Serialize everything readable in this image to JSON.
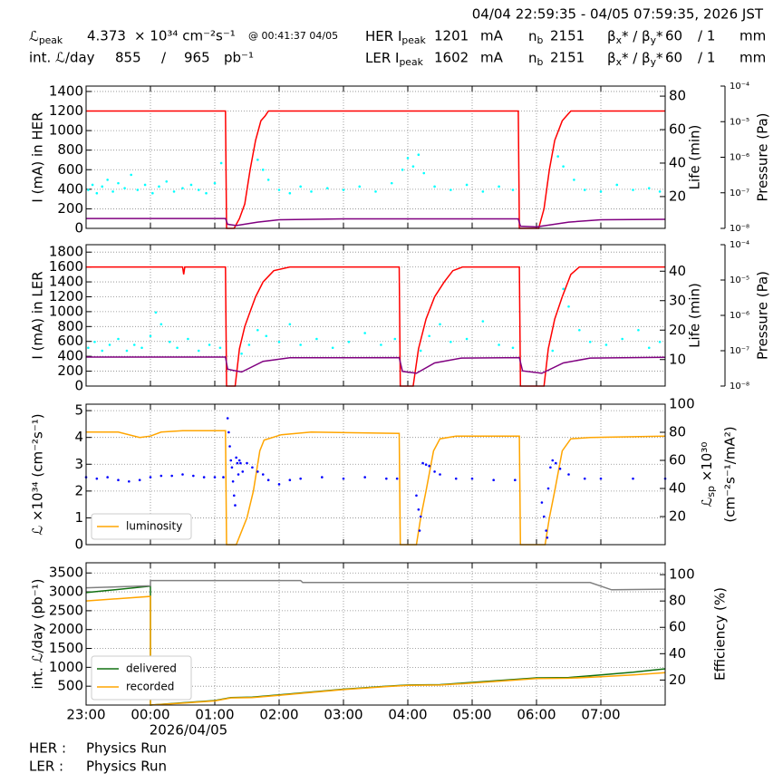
{
  "header": {
    "period": "04/04 22:59:35 - 04/05 07:59:35, 2026 JST",
    "rows": [
      [
        [
          "ℒ",
          "peak"
        ],
        4.373,
        "× 10³⁴ cm⁻²s⁻¹",
        "@ 00:41:37 04/05",
        [
          "HER I",
          "peak"
        ],
        1201,
        "mA",
        [
          "n",
          "b"
        ],
        2151,
        [
          "β",
          "x",
          "* / β",
          "y",
          "*"
        ],
        60,
        "/ 1",
        "mm"
      ],
      [
        "int. ℒ/day",
        855,
        "/",
        965,
        "pb⁻¹",
        [
          "LER I",
          "peak"
        ],
        1602,
        "mA",
        [
          "n",
          "b"
        ],
        2151,
        [
          "β",
          "x",
          "* / β",
          "y",
          "*"
        ],
        60,
        "/ 1",
        "mm"
      ]
    ]
  },
  "chart_data": [
    {
      "type": "line",
      "ylabel": "I (mA) in HER",
      "y2label": [
        "Life (min)"
      ],
      "y3label": "Pressure (Pa)",
      "xlim": [
        "23:00",
        "08:00"
      ],
      "xticks": [
        "23:00",
        "00:00",
        "01:00",
        "02:00",
        "03:00",
        "04:00",
        "05:00",
        "06:00",
        "07:00"
      ],
      "ylim": [
        0,
        1455
      ],
      "yticks": [
        0,
        200,
        400,
        600,
        800,
        1000,
        1200,
        1400
      ],
      "y2lim": [
        1,
        86
      ],
      "y2ticks": [
        20,
        40,
        60,
        80
      ],
      "y3lim": [
        1e-08,
        0.0001
      ],
      "y3log": true,
      "y3ticks": [
        {
          "value": 1e-08,
          "label": "10⁻⁸"
        },
        {
          "value": 1e-07,
          "label": "10⁻⁷"
        },
        {
          "value": 1e-06,
          "label": "10⁻⁶"
        },
        {
          "value": 1e-05,
          "label": "10⁻⁵"
        },
        {
          "value": 0.0001,
          "label": "10⁻⁴"
        }
      ],
      "grid": true,
      "series": [
        {
          "color": "#ff0000",
          "axis": "y",
          "style": "line",
          "x": [
            "23:00",
            "01:10",
            "01:11",
            "01:18",
            "01:23",
            "01:28",
            "01:33",
            "01:38",
            "01:43",
            "01:47",
            "01:50",
            "05:43",
            "05:44",
            "06:02",
            "06:07",
            "06:12",
            "06:17",
            "06:24",
            "06:28",
            "06:32",
            "08:00"
          ],
          "values": [
            1200,
            1200,
            0,
            0,
            100,
            250,
            600,
            900,
            1100,
            1150,
            1200,
            1200,
            0,
            0,
            200,
            600,
            900,
            1100,
            1150,
            1200,
            1200
          ]
        },
        {
          "color": "#800080",
          "axis": "y3",
          "style": "line",
          "x": [
            "23:00",
            "01:10",
            "01:12",
            "01:20",
            "01:40",
            "02:00",
            "03:00",
            "05:43",
            "05:45",
            "06:00",
            "06:30",
            "07:00",
            "08:00"
          ],
          "values": [
            1.9e-08,
            1.9e-08,
            1.3e-08,
            1.2e-08,
            1.5e-08,
            1.75e-08,
            1.85e-08,
            1.85e-08,
            1.15e-08,
            1.1e-08,
            1.5e-08,
            1.75e-08,
            1.8e-08
          ]
        },
        {
          "color": "#00ffff",
          "axis": "y2",
          "style": "dots",
          "x": [
            "23:02",
            "23:06",
            "23:10",
            "23:15",
            "23:20",
            "23:25",
            "23:30",
            "23:36",
            "23:42",
            "23:48",
            "23:55",
            "00:02",
            "00:08",
            "00:15",
            "00:22",
            "00:30",
            "00:38",
            "00:45",
            "00:52",
            "01:00",
            "01:06",
            "01:40",
            "01:45",
            "01:50",
            "02:00",
            "02:10",
            "02:20",
            "02:30",
            "02:45",
            "03:00",
            "03:15",
            "03:30",
            "03:45",
            "03:55",
            "04:00",
            "04:05",
            "04:10",
            "04:15",
            "04:25",
            "04:40",
            "04:55",
            "05:10",
            "05:25",
            "05:38",
            "06:20",
            "06:25",
            "06:35",
            "06:45",
            "07:00",
            "07:15",
            "07:30",
            "07:45",
            "07:55"
          ],
          "values": [
            24,
            27,
            22,
            26,
            30,
            23,
            28,
            25,
            33,
            24,
            27,
            22,
            26,
            29,
            23,
            25,
            27,
            24,
            22,
            28,
            40,
            42,
            36,
            30,
            24,
            22,
            26,
            23,
            25,
            24,
            26,
            23,
            28,
            36,
            43,
            38,
            45,
            34,
            26,
            24,
            27,
            23,
            26,
            24,
            44,
            38,
            30,
            24,
            23,
            27,
            24,
            25,
            23
          ]
        }
      ]
    },
    {
      "type": "line",
      "ylabel": "I (mA) in LER",
      "y2label": [
        "Life (min)"
      ],
      "y3label": "Pressure (Pa)",
      "xlim": [
        "23:00",
        "08:00"
      ],
      "xticks": [
        "23:00",
        "00:00",
        "01:00",
        "02:00",
        "03:00",
        "04:00",
        "05:00",
        "06:00",
        "07:00"
      ],
      "ylim": [
        0,
        1900
      ],
      "yticks": [
        0,
        200,
        400,
        600,
        800,
        1000,
        1200,
        1400,
        1600,
        1800
      ],
      "y2lim": [
        1,
        49
      ],
      "y2ticks": [
        10,
        20,
        30,
        40
      ],
      "y3lim": [
        1e-08,
        0.0001
      ],
      "y3log": true,
      "y3ticks": [
        {
          "value": 1e-08,
          "label": "10⁻⁸"
        },
        {
          "value": 1e-07,
          "label": "10⁻⁷"
        },
        {
          "value": 1e-06,
          "label": "10⁻⁶"
        },
        {
          "value": 1e-05,
          "label": "10⁻⁵"
        },
        {
          "value": 0.0001,
          "label": "10⁻⁴"
        }
      ],
      "grid": true,
      "series": [
        {
          "color": "#ff0000",
          "axis": "y",
          "style": "line",
          "x": [
            "23:00",
            "00:30",
            "00:31",
            "00:32",
            "01:10",
            "01:11",
            "01:19",
            "01:23",
            "01:28",
            "01:33",
            "01:38",
            "01:45",
            "01:55",
            "02:10",
            "03:52",
            "03:53",
            "04:05",
            "04:10",
            "04:17",
            "04:25",
            "04:34",
            "04:42",
            "04:51",
            "05:44",
            "05:45",
            "06:07",
            "06:11",
            "06:17",
            "06:24",
            "06:32",
            "06:40",
            "08:00"
          ],
          "values": [
            1600,
            1600,
            1500,
            1600,
            1600,
            0,
            0,
            500,
            800,
            1000,
            1200,
            1400,
            1550,
            1600,
            1600,
            0,
            0,
            500,
            900,
            1200,
            1400,
            1550,
            1600,
            1600,
            0,
            0,
            500,
            900,
            1200,
            1500,
            1600,
            1600
          ]
        },
        {
          "color": "#800080",
          "axis": "y3",
          "style": "line",
          "x": [
            "23:00",
            "01:10",
            "01:12",
            "01:25",
            "01:45",
            "02:10",
            "03:52",
            "03:55",
            "04:08",
            "04:25",
            "04:50",
            "05:44",
            "05:47",
            "06:05",
            "06:25",
            "06:50",
            "08:00"
          ],
          "values": [
            6.6e-08,
            6.6e-08,
            3e-08,
            2.5e-08,
            5e-08,
            6.3e-08,
            6.4e-08,
            2.6e-08,
            2.3e-08,
            4.5e-08,
            6.2e-08,
            6.4e-08,
            2.7e-08,
            2.3e-08,
            4.5e-08,
            6.2e-08,
            6.5e-08
          ]
        },
        {
          "color": "#00ffff",
          "axis": "y2",
          "style": "dots",
          "x": [
            "23:02",
            "23:08",
            "23:15",
            "23:22",
            "23:30",
            "23:38",
            "23:45",
            "23:52",
            "00:00",
            "00:05",
            "00:10",
            "00:18",
            "00:25",
            "00:35",
            "00:45",
            "00:55",
            "01:05",
            "01:25",
            "01:32",
            "01:40",
            "01:48",
            "02:00",
            "02:10",
            "02:20",
            "02:35",
            "02:50",
            "03:05",
            "03:20",
            "03:35",
            "03:48",
            "04:12",
            "04:20",
            "04:30",
            "04:40",
            "04:55",
            "05:10",
            "05:25",
            "05:38",
            "06:15",
            "06:25",
            "06:30",
            "06:40",
            "06:50",
            "07:05",
            "07:20",
            "07:35",
            "07:45",
            "07:55"
          ],
          "values": [
            14,
            16,
            13,
            15,
            17,
            13,
            15,
            14,
            18,
            26,
            22,
            16,
            14,
            17,
            13,
            15,
            14,
            12,
            15,
            20,
            18,
            16,
            22,
            15,
            17,
            14,
            16,
            19,
            15,
            17,
            13,
            18,
            22,
            16,
            17,
            23,
            15,
            14,
            13,
            34,
            28,
            20,
            16,
            15,
            17,
            20,
            14,
            16
          ]
        }
      ]
    },
    {
      "type": "line",
      "ylabel": "ℒ ×10³⁴ (cm⁻²s⁻¹)",
      "y2label": [
        [
          "ℒ",
          "sp",
          " ×10³⁰"
        ],
        "(cm⁻²s⁻¹/mA²)"
      ],
      "xlim": [
        "23:00",
        "08:00"
      ],
      "xticks": [
        "23:00",
        "00:00",
        "01:00",
        "02:00",
        "03:00",
        "04:00",
        "05:00",
        "06:00",
        "07:00"
      ],
      "ylim": [
        0,
        5.24
      ],
      "yticks": [
        0,
        1,
        2,
        3,
        4,
        5
      ],
      "y2lim": [
        0,
        100
      ],
      "y2ticks": [
        20,
        40,
        60,
        80,
        100
      ],
      "grid": true,
      "legend": "lower left",
      "series": [
        {
          "name": "luminosity",
          "color": "#ffa500",
          "axis": "y",
          "style": "line",
          "x": [
            "23:00",
            "23:30",
            "23:50",
            "00:00",
            "00:10",
            "00:30",
            "01:10",
            "01:11",
            "01:20",
            "01:25",
            "01:30",
            "01:36",
            "01:42",
            "01:46",
            "02:02",
            "02:30",
            "03:52",
            "03:53",
            "04:08",
            "04:12",
            "04:17",
            "04:24",
            "04:30",
            "04:45",
            "05:44",
            "05:45",
            "06:08",
            "06:12",
            "06:17",
            "06:24",
            "06:32",
            "06:50",
            "08:00"
          ],
          "values": [
            4.2,
            4.2,
            4.0,
            4.05,
            4.2,
            4.25,
            4.25,
            0,
            0,
            0.5,
            1.0,
            2.0,
            3.5,
            3.9,
            4.1,
            4.2,
            4.15,
            0,
            0,
            1.0,
            2.0,
            3.5,
            3.95,
            4.05,
            4.05,
            0,
            0,
            1.0,
            2.0,
            3.5,
            3.95,
            4.0,
            4.05
          ]
        },
        {
          "color": "#0000ff",
          "axis": "y2",
          "style": "dots",
          "x": [
            "23:00",
            "23:10",
            "23:20",
            "23:30",
            "23:40",
            "23:50",
            "00:00",
            "00:10",
            "00:20",
            "00:30",
            "00:40",
            "00:50",
            "01:00",
            "01:08",
            "01:12",
            "01:13",
            "01:14",
            "01:15",
            "01:16",
            "01:17",
            "01:18",
            "01:19",
            "01:20",
            "01:21",
            "01:22",
            "01:23",
            "01:24",
            "01:26",
            "01:30",
            "01:35",
            "01:40",
            "01:45",
            "01:50",
            "02:00",
            "02:10",
            "02:20",
            "02:40",
            "03:00",
            "03:20",
            "03:40",
            "03:50",
            "04:08",
            "04:10",
            "04:11",
            "04:12",
            "04:14",
            "04:17",
            "04:20",
            "04:25",
            "04:30",
            "04:45",
            "05:00",
            "05:20",
            "05:40",
            "06:05",
            "06:07",
            "06:09",
            "06:10",
            "06:11",
            "06:13",
            "06:15",
            "06:18",
            "06:22",
            "06:30",
            "06:45",
            "07:00",
            "07:30",
            "08:00"
          ],
          "values": [
            48,
            47,
            48,
            46,
            45,
            46,
            48,
            49,
            49,
            50,
            49,
            48,
            48,
            48,
            90,
            80,
            70,
            60,
            55,
            45,
            35,
            28,
            62,
            58,
            50,
            60,
            58,
            52,
            58,
            55,
            52,
            50,
            46,
            43,
            46,
            47,
            48,
            47,
            48,
            47,
            47,
            35,
            25,
            10,
            20,
            58,
            57,
            56,
            52,
            50,
            47,
            47,
            46,
            46,
            30,
            20,
            10,
            5,
            40,
            55,
            60,
            58,
            54,
            50,
            47,
            47,
            47,
            47
          ]
        }
      ]
    },
    {
      "type": "line",
      "ylabel": "int. ℒ/day (pb⁻¹)",
      "y2label": [
        "Efficiency (%)"
      ],
      "xlim": [
        "23:00",
        "08:00"
      ],
      "xticks": [
        "23:00",
        "00:00",
        "01:00",
        "02:00",
        "03:00",
        "04:00",
        "05:00",
        "06:00",
        "07:00"
      ],
      "xdate": "2026/04/05",
      "ylim": [
        0,
        3770
      ],
      "yticks": [
        500,
        1000,
        1500,
        2000,
        2500,
        3000,
        3500
      ],
      "y2lim": [
        1,
        109
      ],
      "y2ticks": [
        20,
        40,
        60,
        80,
        100
      ],
      "grid": true,
      "legend": "lower left",
      "series": [
        {
          "name": "delivered",
          "color": "#107010",
          "axis": "y",
          "style": "line",
          "x": [
            "23:00",
            "00:00",
            "00:00",
            "00:30",
            "01:00",
            "01:15",
            "01:35",
            "02:00",
            "03:00",
            "03:40",
            "04:00",
            "04:30",
            "05:00",
            "05:30",
            "06:00",
            "06:30",
            "07:00",
            "07:30",
            "08:00"
          ],
          "values": [
            2980,
            3150,
            0,
            60,
            120,
            200,
            210,
            270,
            420,
            500,
            530,
            540,
            600,
            660,
            720,
            730,
            800,
            870,
            960
          ]
        },
        {
          "name": "recorded",
          "color": "#ffa500",
          "axis": "y",
          "style": "line",
          "x": [
            "23:00",
            "00:00",
            "00:00",
            "00:30",
            "01:00",
            "01:15",
            "01:35",
            "02:00",
            "03:00",
            "03:40",
            "04:00",
            "04:30",
            "05:00",
            "05:30",
            "06:00",
            "06:30",
            "07:00",
            "07:30",
            "08:00"
          ],
          "values": [
            2760,
            2880,
            0,
            50,
            110,
            190,
            200,
            260,
            410,
            490,
            520,
            530,
            580,
            640,
            700,
            710,
            750,
            800,
            860
          ]
        },
        {
          "color": "#808080",
          "axis": "y2",
          "style": "line",
          "x": [
            "23:00",
            "00:00",
            "00:00",
            "02:20",
            "02:22",
            "06:50",
            "07:10",
            "08:00"
          ],
          "values": [
            90,
            91.5,
            95.5,
            95.5,
            94,
            94,
            88.5,
            89
          ]
        }
      ]
    }
  ],
  "footer": {
    "rows": [
      [
        "HER :",
        "Physics Run"
      ],
      [
        "LER :",
        "Physics Run"
      ]
    ]
  }
}
